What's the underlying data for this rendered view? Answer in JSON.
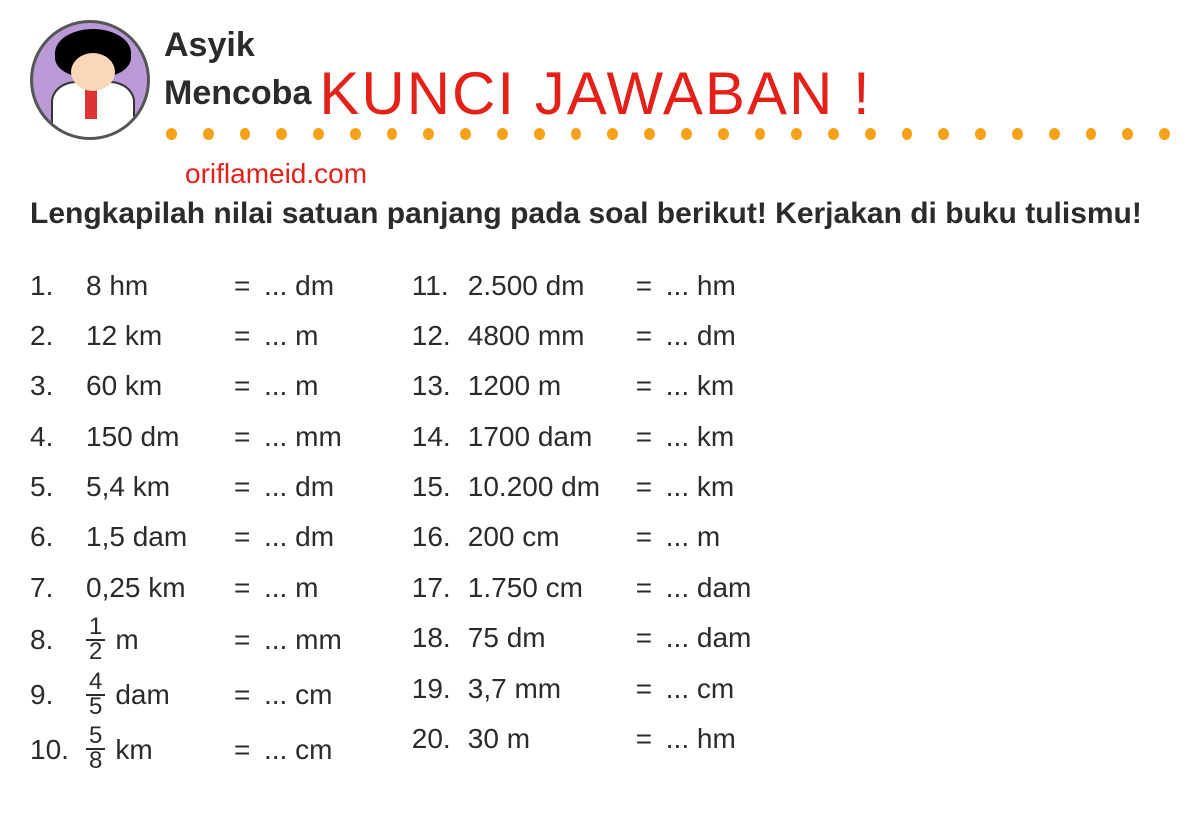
{
  "header": {
    "asyik": "Asyik",
    "mencoba": "Mencoba",
    "kunci": "KUNCI JAWABAN !",
    "site": "oriflameid.com",
    "instruction": "Lengkapilah nilai satuan panjang pada soal berikut! Kerjakan di buku tulismu!"
  },
  "style": {
    "accent_red": "#e32118",
    "dot_color": "#f5a21a",
    "avatar_bg": "#b999d6",
    "text_color": "#2b2b2b",
    "dot_count": 28
  },
  "left": [
    {
      "n": "1.",
      "lhs": "8 hm",
      "eq": "=",
      "rhs": "... dm"
    },
    {
      "n": "2.",
      "lhs": "12 km",
      "eq": "=",
      "rhs": "... m"
    },
    {
      "n": "3.",
      "lhs": "60 km",
      "eq": "=",
      "rhs": "... m"
    },
    {
      "n": "4.",
      "lhs": "150 dm",
      "eq": "=",
      "rhs": "... mm"
    },
    {
      "n": "5.",
      "lhs": "5,4 km",
      "eq": "=",
      "rhs": "... dm"
    },
    {
      "n": "6.",
      "lhs": "1,5 dam",
      "eq": "=",
      "rhs": "... dm"
    },
    {
      "n": "7.",
      "lhs": "0,25 km",
      "eq": "=",
      "rhs": "... m"
    },
    {
      "n": "8.",
      "frac_top": "1",
      "frac_bot": "2",
      "unit": "m",
      "eq": "=",
      "rhs": "... mm"
    },
    {
      "n": "9.",
      "frac_top": "4",
      "frac_bot": "5",
      "unit": "dam",
      "eq": "=",
      "rhs": "... cm"
    },
    {
      "n": "10.",
      "frac_top": "5",
      "frac_bot": "8",
      "unit": "km",
      "eq": "=",
      "rhs": "... cm"
    }
  ],
  "right": [
    {
      "n": "11.",
      "lhs": "2.500 dm",
      "eq": "=",
      "rhs": "... hm"
    },
    {
      "n": "12.",
      "lhs": "4800 mm",
      "eq": "=",
      "rhs": "... dm"
    },
    {
      "n": "13.",
      "lhs": "1200 m",
      "eq": "=",
      "rhs": "... km"
    },
    {
      "n": "14.",
      "lhs": "1700 dam",
      "eq": "=",
      "rhs": "... km"
    },
    {
      "n": "15.",
      "lhs": "10.200 dm",
      "eq": "=",
      "rhs": "... km"
    },
    {
      "n": "16.",
      "lhs": "200 cm",
      "eq": "=",
      "rhs": "... m"
    },
    {
      "n": "17.",
      "lhs": "1.750 cm",
      "eq": "=",
      "rhs": "... dam"
    },
    {
      "n": "18.",
      "lhs": "75 dm",
      "eq": "=",
      "rhs": "... dam"
    },
    {
      "n": "19.",
      "lhs": "3,7 mm",
      "eq": "=",
      "rhs": "... cm"
    },
    {
      "n": "20.",
      "lhs": "30 m",
      "eq": "=",
      "rhs": "... hm"
    }
  ]
}
